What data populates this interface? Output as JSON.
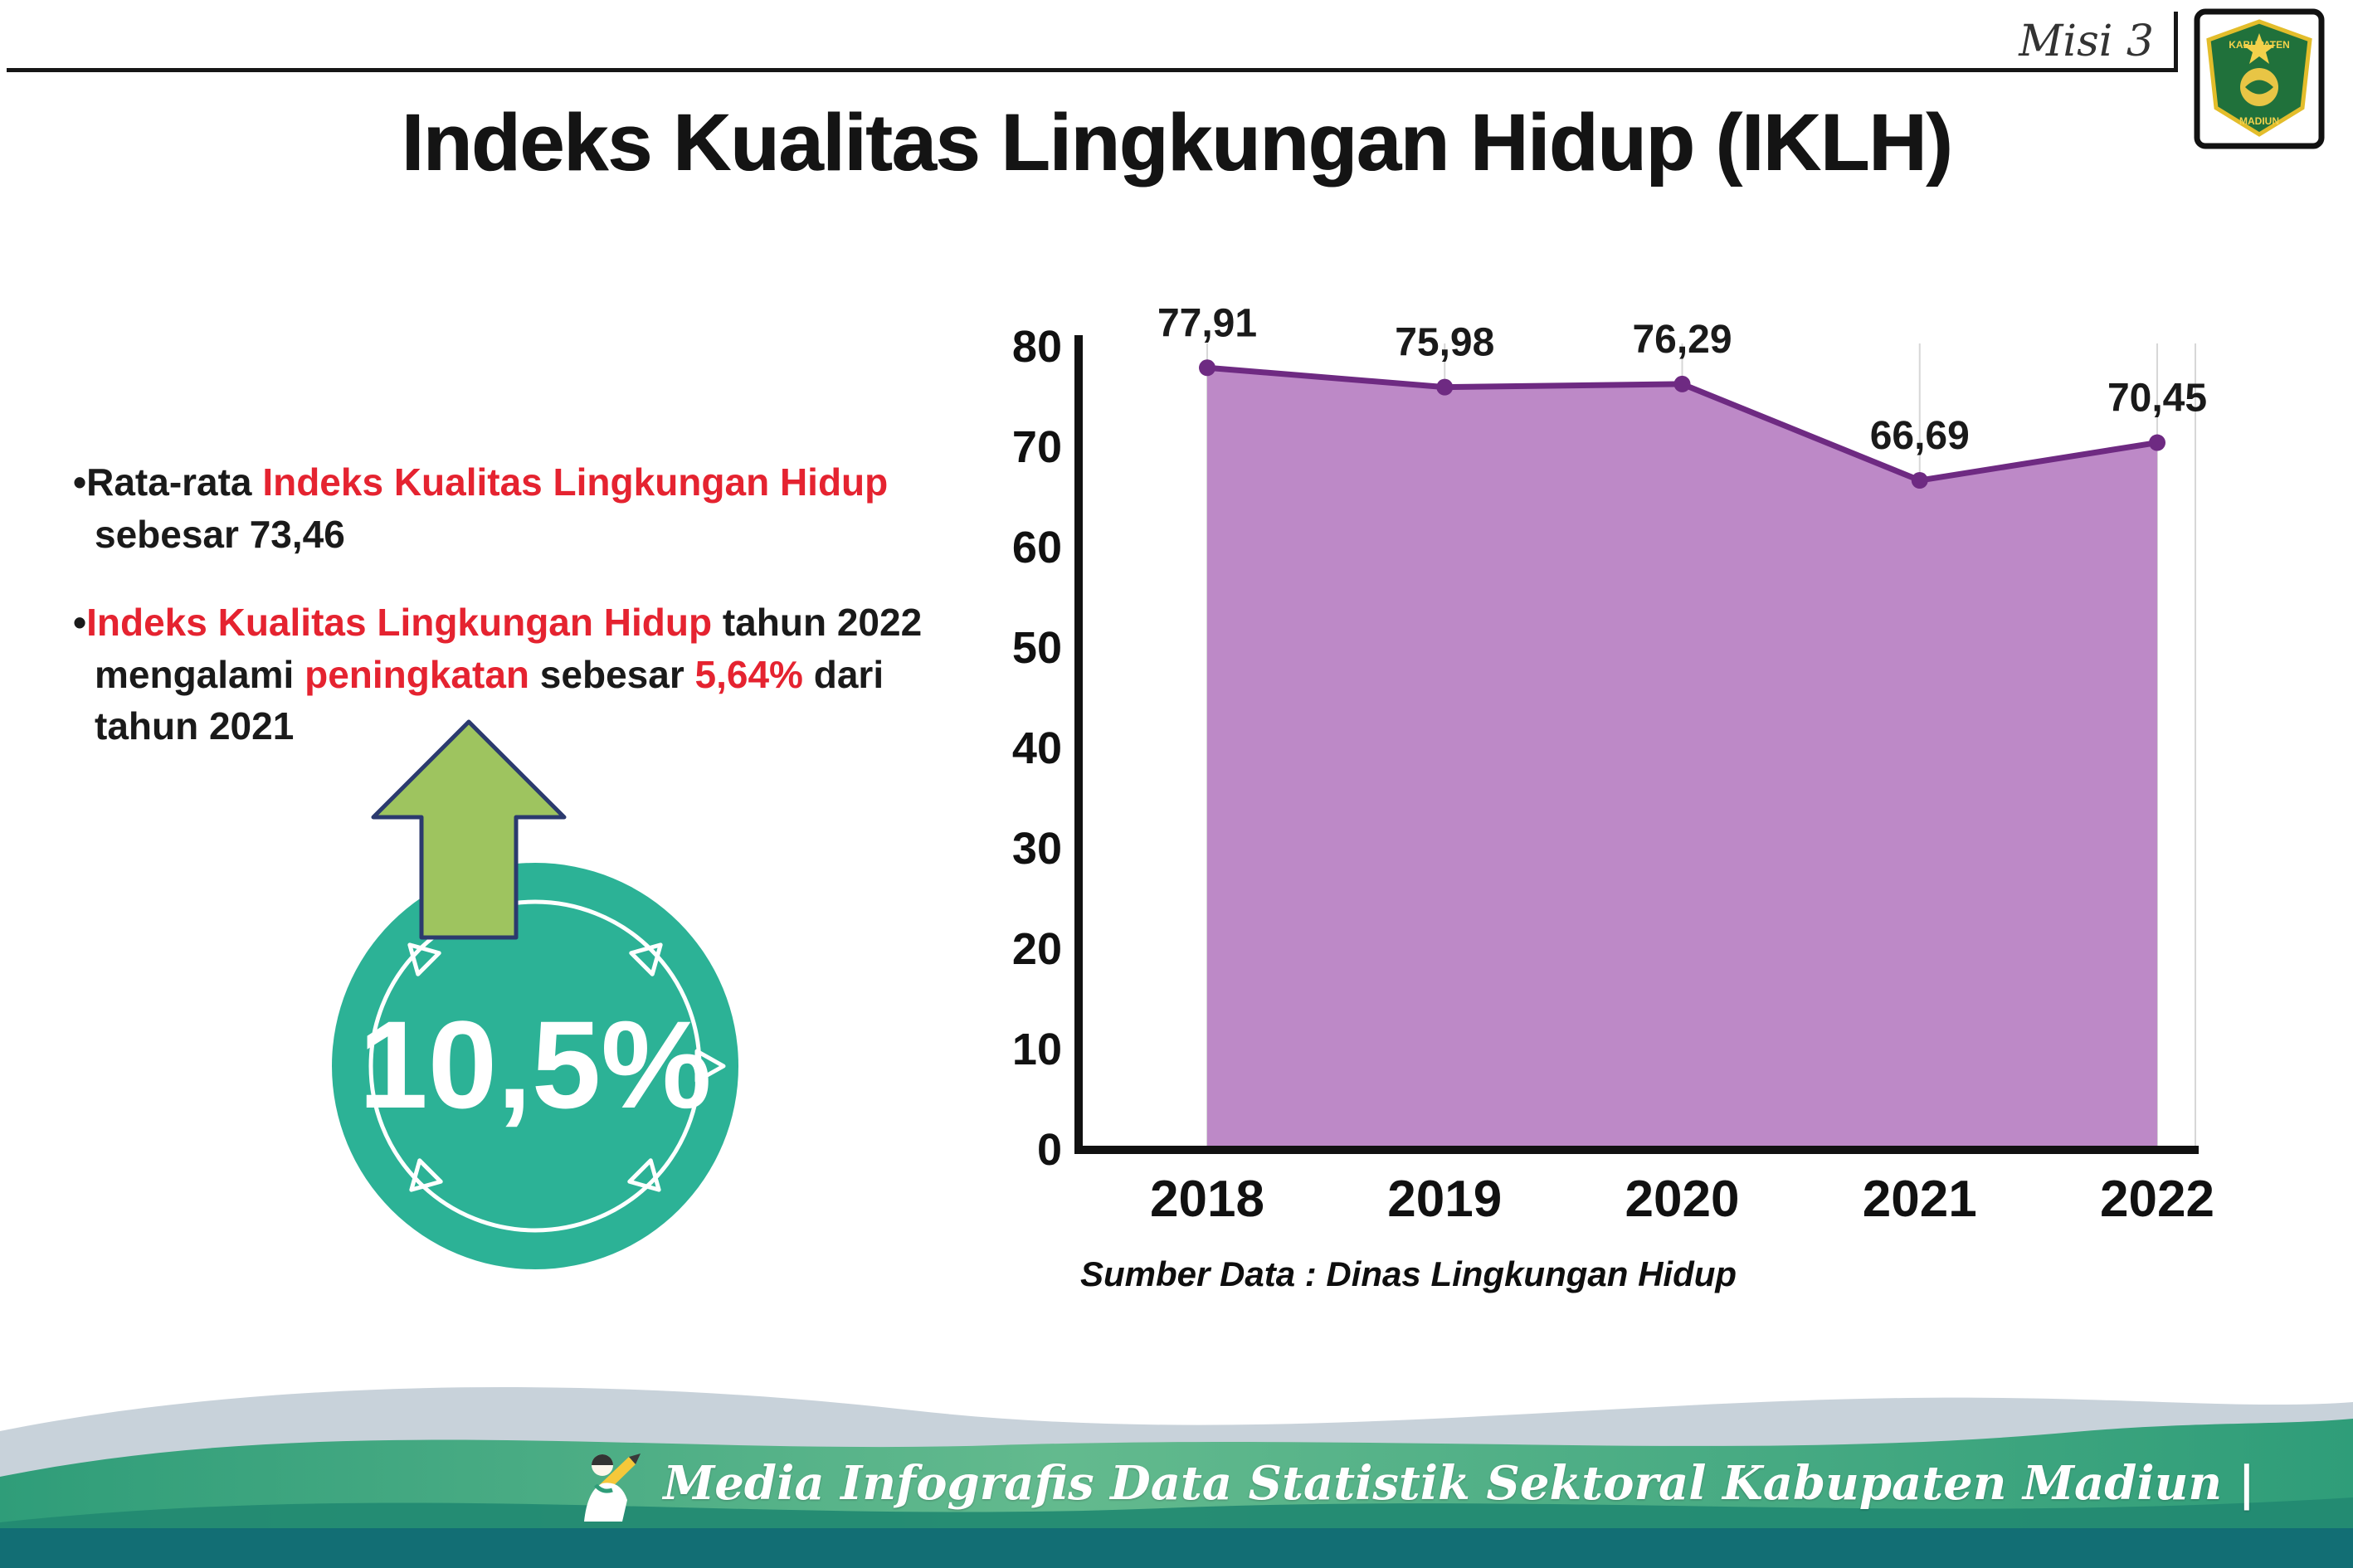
{
  "header": {
    "misi_label": "Misi 3",
    "title": "Indeks Kualitas Lingkungan Hidup (IKLH)"
  },
  "logo": {
    "line1": "KABUPATEN",
    "line2": "MADIUN"
  },
  "bullets": {
    "marker": "•",
    "b1": {
      "s0": "Rata-rata ",
      "s1": "Indeks Kualitas Lingkungan Hidup",
      "s2": " sebesar 73,46"
    },
    "b2": {
      "s0": "Indeks Kualitas Lingkungan Hidup",
      "s1": " tahun 2022 mengalami ",
      "s2": "peningkatan",
      "s3": " sebesar ",
      "s4": "5,64%",
      "s5": " dari tahun 2021"
    }
  },
  "badge": {
    "value": "10,5%",
    "arrow_icon": "arrow-up-icon"
  },
  "chart_data": {
    "type": "area",
    "categories": [
      "2018",
      "2019",
      "2020",
      "2021",
      "2022"
    ],
    "values": [
      77.91,
      75.98,
      76.29,
      66.69,
      70.45
    ],
    "point_labels": [
      "77,91",
      "75,98",
      "76,29",
      "66,69",
      "70,45"
    ],
    "title": "",
    "xlabel": "",
    "ylabel": "",
    "ylim": [
      0,
      80
    ],
    "yticks": [
      0,
      10,
      20,
      30,
      40,
      50,
      60,
      70,
      80
    ],
    "grid": "vertical-light",
    "legend": "none",
    "source_note": "Sumber Data : Dinas Lingkungan Hidup",
    "colors": {
      "area": "#bd89c7",
      "line": "#6e2a82",
      "marker": "#6e2a82",
      "axis": "#111111",
      "value_label": "#1a1a1a",
      "grid": "#d7d7d7"
    }
  },
  "footer": {
    "caption": "Media Infografis Data Statistik Sektoral Kabupaten Madiun |"
  },
  "colors": {
    "accent_red": "#e52330",
    "badge_teal": "#2cb296",
    "arrow_green": "#9ec45f",
    "arrow_outline": "#2b3a6e",
    "footer_strip": "#126e74"
  }
}
